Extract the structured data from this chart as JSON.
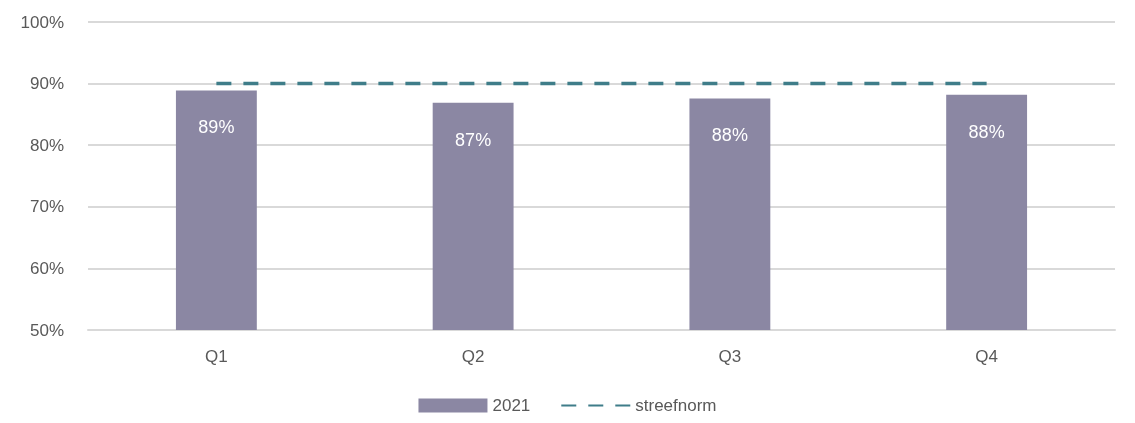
{
  "chart_data": {
    "type": "bar",
    "categories": [
      "Q1",
      "Q2",
      "Q3",
      "Q4"
    ],
    "series": [
      {
        "name": "2021",
        "color": "#8b87a3",
        "values": [
          88.9,
          86.9,
          87.6,
          88.2
        ],
        "value_labels": [
          "89%",
          "87%",
          "88%",
          "88%"
        ]
      },
      {
        "name": "streefnorm",
        "type": "line",
        "color": "#3f7d89",
        "values": [
          90,
          90,
          90,
          90
        ]
      }
    ],
    "ylim": [
      50,
      100
    ],
    "yticks": [
      {
        "value": 50,
        "label": "50%"
      },
      {
        "value": 60,
        "label": "60%"
      },
      {
        "value": 70,
        "label": "70%"
      },
      {
        "value": 80,
        "label": "80%"
      },
      {
        "value": 90,
        "label": "90%"
      },
      {
        "value": 100,
        "label": "100%"
      }
    ],
    "grid": "y",
    "legend": "bottom",
    "marker": "none",
    "line_style": "dashed"
  }
}
